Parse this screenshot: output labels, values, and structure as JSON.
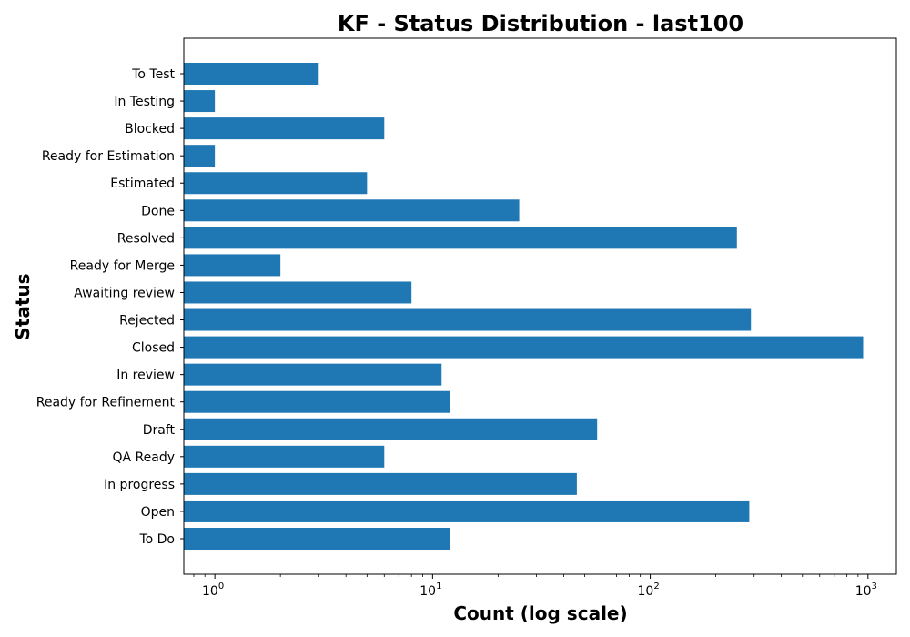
{
  "chart_data": {
    "type": "bar",
    "orientation": "horizontal",
    "title": "KF - Status Distribution - last100",
    "xlabel": "Count (log scale)",
    "ylabel": "Status",
    "xscale": "log",
    "xlim": [
      0.72,
      1350
    ],
    "x_ticks": [
      {
        "value": 1,
        "base": "10",
        "exp": "0"
      },
      {
        "value": 10,
        "base": "10",
        "exp": "1"
      },
      {
        "value": 100,
        "base": "10",
        "exp": "2"
      },
      {
        "value": 1000,
        "base": "10",
        "exp": "3"
      }
    ],
    "bar_color": "#1f77b4",
    "grid": false,
    "categories": [
      "To Test",
      "In Testing",
      "Blocked",
      "Ready for Estimation",
      "Estimated",
      "Done",
      "Resolved",
      "Ready for Merge",
      "Awaiting review",
      "Rejected",
      "Closed",
      "In review",
      "Ready for Refinement",
      "Draft",
      "QA Ready",
      "In progress",
      "Open",
      "To Do"
    ],
    "values": [
      3,
      1,
      6,
      1,
      5,
      25,
      250,
      2,
      8,
      290,
      950,
      11,
      12,
      57,
      6,
      46,
      285,
      12
    ]
  }
}
